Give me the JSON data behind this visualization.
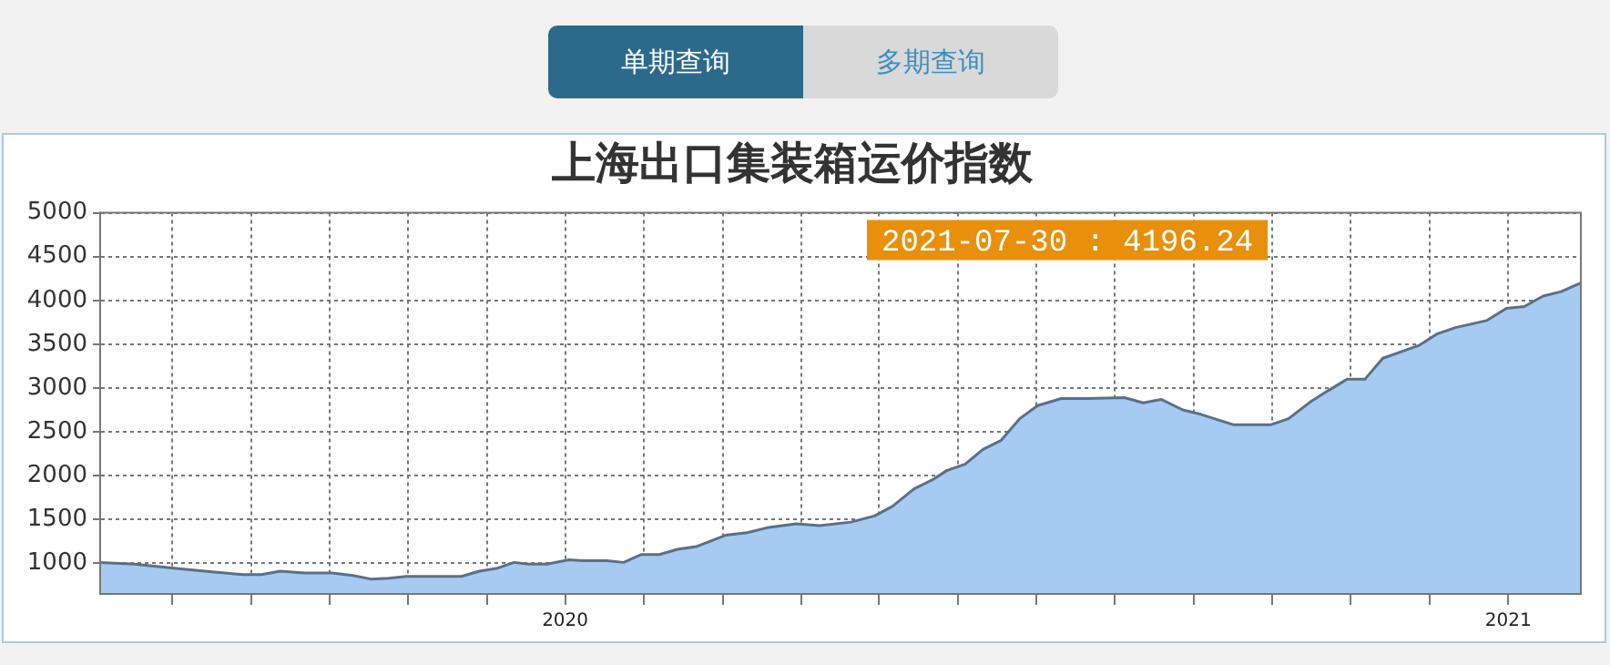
{
  "chart_data": {
    "type": "area",
    "title": "上海出口集装箱运价指数",
    "annotations": [
      "单期查询",
      "多期查询",
      "2021-07-30 : 4196.24"
    ],
    "x": [
      2019.507,
      2019.543,
      2019.588,
      2019.628,
      2019.659,
      2019.678,
      2019.698,
      2019.724,
      2019.753,
      2019.775,
      2019.794,
      2019.813,
      2019.832,
      2019.89,
      2019.909,
      2019.927,
      2019.946,
      2019.961,
      2019.981,
      2020.004,
      2020.019,
      2020.044,
      2020.062,
      2020.081,
      2020.1,
      2020.119,
      2020.139,
      2020.17,
      2020.193,
      2020.216,
      2020.245,
      2020.27,
      2020.303,
      2020.328,
      2020.347,
      2020.37,
      2020.389,
      2020.405,
      2020.424,
      2020.443,
      2020.462,
      2020.482,
      2020.501,
      2020.526,
      2020.553,
      2020.593,
      2020.613,
      2020.632,
      2020.655,
      2020.674,
      2020.709,
      2020.748,
      2020.767,
      2020.79,
      2020.809,
      2020.829,
      2020.848,
      2020.867,
      2020.906,
      2020.925,
      2020.944,
      2020.977,
      2020.998,
      2021.017,
      2021.037,
      2021.056,
      2021.077
    ],
    "series": [
      {
        "color": "#a6cbf2",
        "values": [
          1010,
          990,
          940,
          900,
          870,
          870,
          910,
          890,
          890,
          860,
          820,
          830,
          850,
          850,
          910,
          940,
          1010,
          990,
          990,
          1040,
          1030,
          1030,
          1010,
          1100,
          1100,
          1160,
          1190,
          1320,
          1350,
          1410,
          1450,
          1430,
          1470,
          1540,
          1650,
          1850,
          1950,
          2060,
          2130,
          2300,
          2400,
          2650,
          2800,
          2880,
          2880,
          2890,
          2830,
          2870,
          2750,
          2700,
          2580,
          2580,
          2650,
          2840,
          2970,
          3100,
          3100,
          3340,
          3490,
          3620,
          3690,
          3770,
          3910,
          3930,
          4050,
          4100,
          4200
        ]
      }
    ],
    "xlim": [
      2019.507,
      2021.077
    ],
    "xticks": [
      {
        "value": 2019.583,
        "label": null
      },
      {
        "value": 2019.667,
        "label": null
      },
      {
        "value": 2019.75,
        "label": null
      },
      {
        "value": 2019.833,
        "label": null
      },
      {
        "value": 2019.917,
        "label": null
      },
      2020,
      {
        "value": 2020.083,
        "label": null
      },
      {
        "value": 2020.167,
        "label": null
      },
      {
        "value": 2020.25,
        "label": null
      },
      {
        "value": 2020.333,
        "label": null
      },
      {
        "value": 2020.417,
        "label": null
      },
      {
        "value": 2020.5,
        "label": null
      },
      {
        "value": 2020.583,
        "label": null
      },
      {
        "value": 2020.667,
        "label": null
      },
      {
        "value": 2020.75,
        "label": null
      },
      {
        "value": 2020.833,
        "label": null
      },
      {
        "value": 2020.917,
        "label": null
      },
      2021
    ],
    "ylim": [
      650,
      5000
    ],
    "yticks": [
      1000,
      1500,
      2000,
      2500,
      3000,
      3500,
      4000,
      4500,
      5000
    ],
    "grid": true,
    "legend": false,
    "marker": "none",
    "line_style": "solid"
  }
}
